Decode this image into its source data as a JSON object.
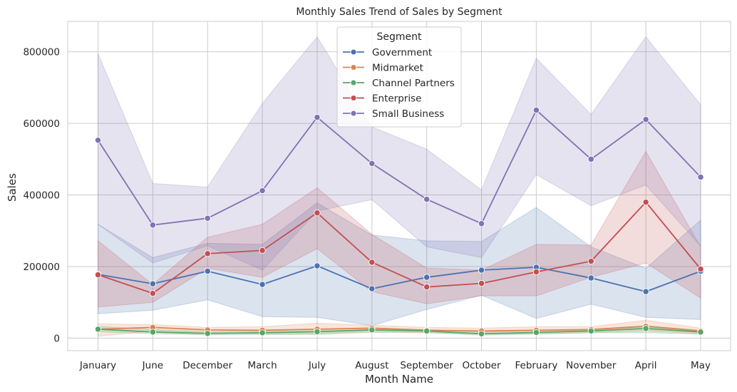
{
  "chart_data": {
    "type": "line",
    "title": "Monthly Sales Trend of Sales by Segment",
    "xlabel": "Month Name",
    "ylabel": "Sales",
    "categories": [
      "January",
      "June",
      "December",
      "March",
      "July",
      "August",
      "September",
      "October",
      "February",
      "November",
      "April",
      "May"
    ],
    "ylim": [
      -35000,
      885000
    ],
    "yticks": [
      0,
      200000,
      400000,
      600000,
      800000
    ],
    "ytick_labels": [
      "0",
      "200000",
      "400000",
      "600000",
      "800000"
    ],
    "grid": true,
    "legend": {
      "title": "Segment",
      "placement": "top-center"
    },
    "series": [
      {
        "name": "Government",
        "color": "#4c72b0",
        "values": [
          178000,
          152000,
          187000,
          150000,
          202000,
          138000,
          170000,
          190000,
          198000,
          168000,
          130000,
          187000
        ],
        "ci_low": [
          68000,
          78000,
          107000,
          60000,
          58000,
          35000,
          80000,
          120000,
          55000,
          95000,
          58000,
          52000
        ],
        "ci_high": [
          318000,
          225000,
          265000,
          262000,
          378000,
          288000,
          272000,
          270000,
          365000,
          255000,
          195000,
          330000
        ]
      },
      {
        "name": "Midmarket",
        "color": "#dd8452",
        "values": [
          25000,
          30000,
          23000,
          22000,
          25000,
          28000,
          22000,
          20000,
          22000,
          24000,
          33000,
          20000
        ],
        "ci_low": [
          5000,
          20000,
          15000,
          12000,
          12000,
          18000,
          15000,
          12000,
          12000,
          15000,
          20000,
          12000
        ],
        "ci_high": [
          40000,
          38000,
          30000,
          32000,
          42000,
          36000,
          30000,
          28000,
          32000,
          32000,
          50000,
          28000
        ]
      },
      {
        "name": "Channel Partners",
        "color": "#55a868",
        "values": [
          25000,
          17000,
          13000,
          15000,
          18000,
          23000,
          20000,
          12000,
          16000,
          20000,
          27000,
          17000
        ],
        "ci_low": [
          18000,
          12000,
          9000,
          10000,
          10000,
          16000,
          15000,
          8000,
          11000,
          15000,
          15000,
          11000
        ],
        "ci_high": [
          33000,
          24000,
          18000,
          20000,
          25000,
          28000,
          24000,
          17000,
          22000,
          25000,
          35000,
          22000
        ]
      },
      {
        "name": "Enterprise",
        "color": "#c44e52",
        "values": [
          177000,
          125000,
          236000,
          245000,
          350000,
          212000,
          143000,
          153000,
          185000,
          215000,
          380000,
          193000
        ],
        "ci_low": [
          87000,
          100000,
          195000,
          170000,
          250000,
          130000,
          96000,
          118000,
          118000,
          170000,
          210000,
          112000
        ],
        "ci_high": [
          272000,
          150000,
          282000,
          318000,
          420000,
          290000,
          196000,
          190000,
          262000,
          260000,
          522000,
          255000
        ]
      },
      {
        "name": "Small Business",
        "color": "#8172b3",
        "values": [
          553000,
          316000,
          335000,
          412000,
          617000,
          488000,
          388000,
          320000,
          637000,
          500000,
          611000,
          450000
        ],
        "ci_low": [
          318000,
          210000,
          258000,
          190000,
          355000,
          387000,
          255000,
          225000,
          457000,
          370000,
          428000,
          257000
        ],
        "ci_high": [
          795000,
          432000,
          422000,
          656000,
          842000,
          590000,
          528000,
          414000,
          782000,
          625000,
          842000,
          652000
        ]
      }
    ]
  }
}
